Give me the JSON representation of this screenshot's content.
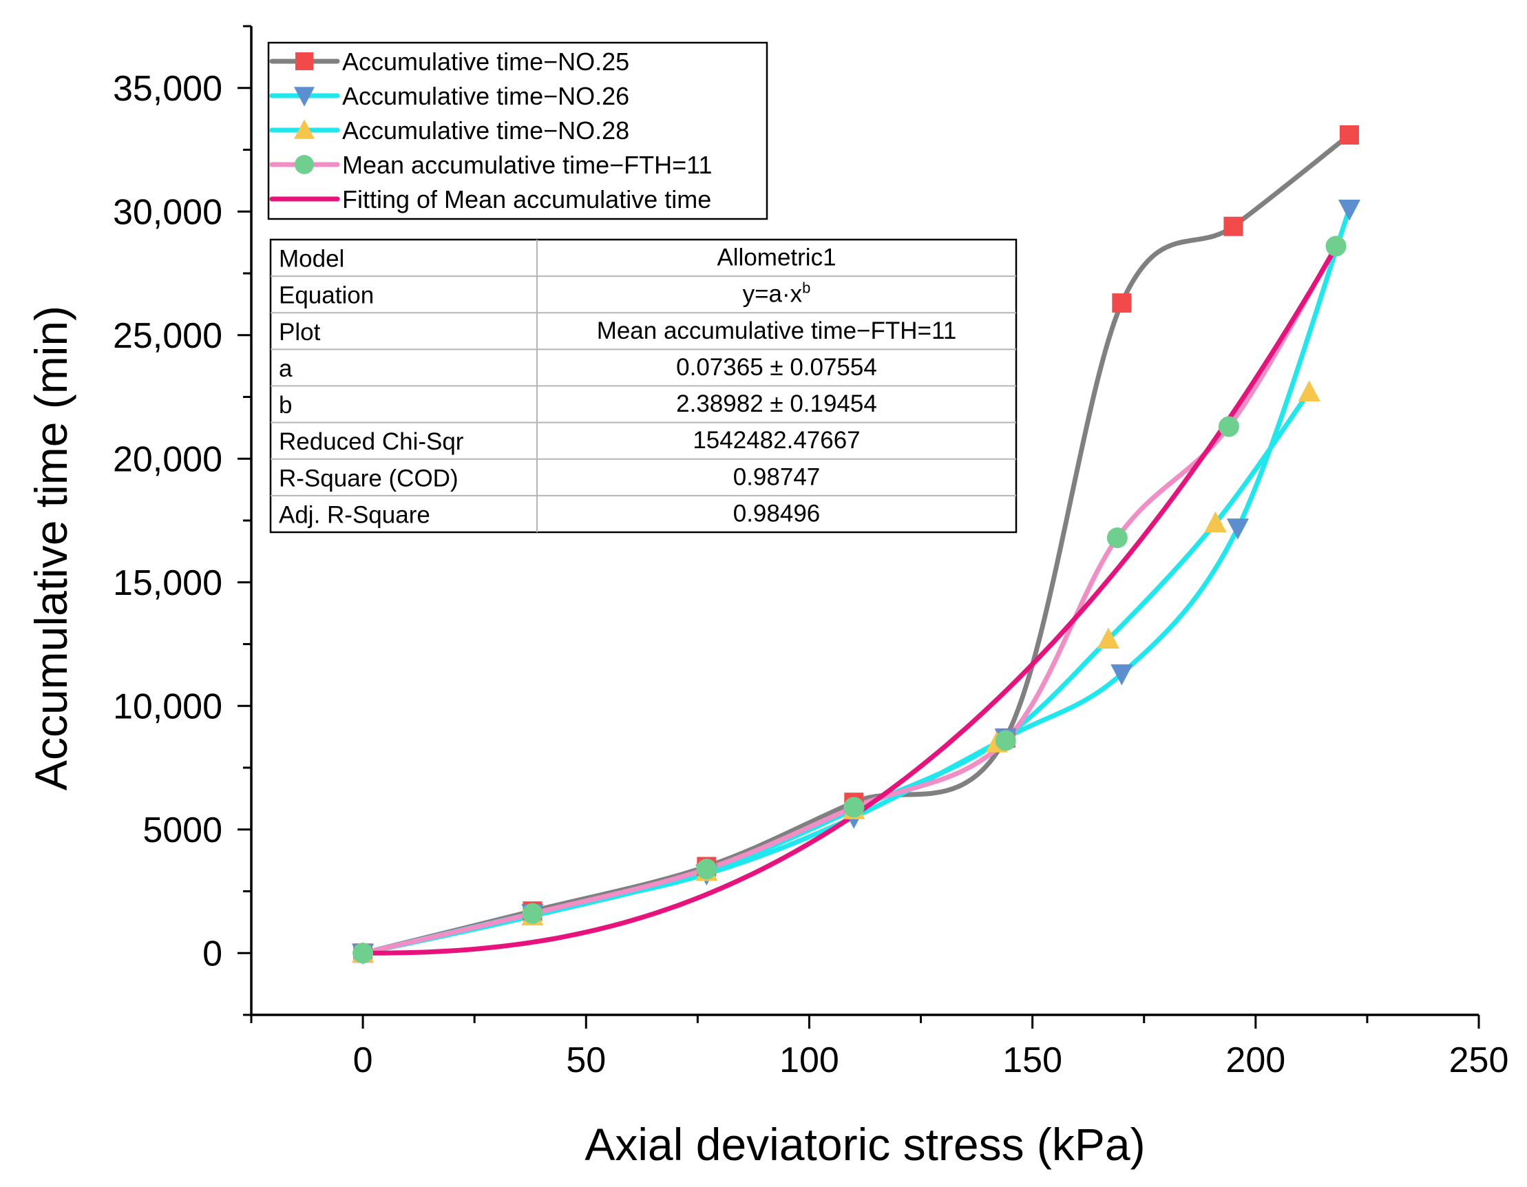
{
  "chart_data": {
    "type": "line",
    "xlabel": "Axial deviatoric stress (kPa)",
    "ylabel": "Accumulative time (min)",
    "xlim": [
      -25,
      250
    ],
    "ylim": [
      -2500,
      37500
    ],
    "x_ticks": [
      0,
      50,
      100,
      150,
      200,
      250
    ],
    "x_tick_labels": [
      "0",
      "50",
      "100",
      "150",
      "200",
      "250"
    ],
    "y_ticks": [
      0,
      5000,
      10000,
      15000,
      20000,
      25000,
      30000,
      35000
    ],
    "y_tick_labels": [
      "0",
      "5000",
      "10,000",
      "15,000",
      "20,000",
      "25,000",
      "30,000",
      "35,000"
    ],
    "legend_position": "top-left",
    "series": [
      {
        "name": "Accumulative time−NO.25",
        "line_color": "#808080",
        "marker": "square",
        "marker_color": "#f24a4a",
        "x": [
          0,
          38,
          77,
          110,
          144,
          170,
          195,
          221
        ],
        "y": [
          0,
          1700,
          3500,
          6100,
          8700,
          26300,
          29400,
          33100
        ]
      },
      {
        "name": "Accumulative time−NO.26",
        "line_color": "#1ee8ee",
        "marker": "triangle-down",
        "marker_color": "#5b8fd0",
        "x": [
          0,
          38,
          77,
          110,
          144,
          170,
          196,
          221
        ],
        "y": [
          0,
          1600,
          3200,
          5500,
          8700,
          11300,
          17200,
          30100
        ]
      },
      {
        "name": "Accumulative time−NO.28",
        "line_color": "#1ee8ee",
        "marker": "triangle-up",
        "marker_color": "#f5c64b",
        "x": [
          0,
          38,
          77,
          110,
          142,
          167,
          191,
          212
        ],
        "y": [
          0,
          1500,
          3300,
          5800,
          8500,
          12700,
          17400,
          22700
        ]
      },
      {
        "name": "Mean accumulative time−FTH=11",
        "line_color": "#f08ec5",
        "marker": "circle",
        "marker_color": "#6fcf8f",
        "x": [
          0,
          38,
          77,
          110,
          144,
          169,
          194,
          218
        ],
        "y": [
          0,
          1600,
          3400,
          5900,
          8600,
          16800,
          21300,
          28600
        ]
      },
      {
        "name": "Fitting of Mean accumulative time",
        "line_color": "#e8127c",
        "marker": "none",
        "model": "allometric",
        "a": 0.07365,
        "b": 2.38982,
        "x_range": [
          0,
          218
        ]
      }
    ],
    "fit_table": {
      "rows": [
        {
          "label": "Model",
          "value": "Allometric1"
        },
        {
          "label": "Equation",
          "value": "y=a·x",
          "sup": "b"
        },
        {
          "label": "Plot",
          "value": "Mean accumulative time−FTH=11"
        },
        {
          "label": "a",
          "value": "0.07365 ± 0.07554"
        },
        {
          "label": "b",
          "value": "2.38982 ± 0.19454"
        },
        {
          "label": "Reduced Chi-Sqr",
          "value": "1542482.47667"
        },
        {
          "label": "R-Square (COD)",
          "value": "0.98747"
        },
        {
          "label": "Adj. R-Square",
          "value": "0.98496"
        }
      ]
    }
  }
}
